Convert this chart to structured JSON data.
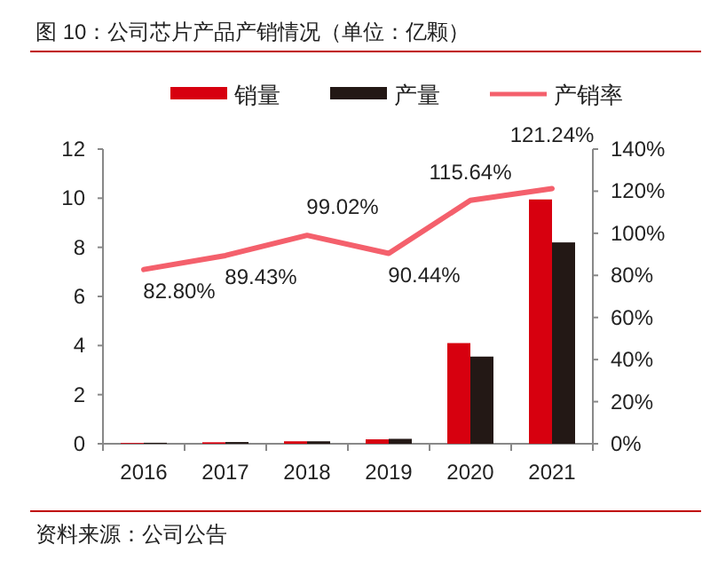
{
  "chart_data": {
    "type": "bar",
    "title": "图 10：公司芯片产品产销情况（单位：亿颗）",
    "categories": [
      "2016",
      "2017",
      "2018",
      "2019",
      "2020",
      "2021"
    ],
    "series": [
      {
        "name": "销量",
        "color": "#d7000f",
        "values": [
          0.03,
          0.06,
          0.1,
          0.18,
          4.1,
          9.95
        ]
      },
      {
        "name": "产量",
        "color": "#231815",
        "values": [
          0.04,
          0.07,
          0.1,
          0.2,
          3.55,
          8.2
        ]
      },
      {
        "name": "产销率",
        "type": "line",
        "axis": "y2",
        "color": "#f4606c",
        "values": [
          82.8,
          89.43,
          99.02,
          90.44,
          115.64,
          121.24
        ],
        "value_labels": [
          "82.80%",
          "89.43%",
          "99.02%",
          "90.44%",
          "115.64%",
          "121.24%"
        ]
      }
    ],
    "ylim": [
      0,
      12
    ],
    "yticks": [
      0,
      2,
      4,
      6,
      8,
      10,
      12
    ],
    "y2lim": [
      0,
      140
    ],
    "y2ticks": [
      {
        "value": 0,
        "label": "0%"
      },
      {
        "value": 20,
        "label": "20%"
      },
      {
        "value": 40,
        "label": "40%"
      },
      {
        "value": 60,
        "label": "60%"
      },
      {
        "value": 80,
        "label": "80%"
      },
      {
        "value": 100,
        "label": "100%"
      },
      {
        "value": 120,
        "label": "120%"
      },
      {
        "value": 140,
        "label": "140%"
      }
    ],
    "legend": "top",
    "grid": false,
    "annotations": [
      "资料来源：公司公告"
    ]
  }
}
